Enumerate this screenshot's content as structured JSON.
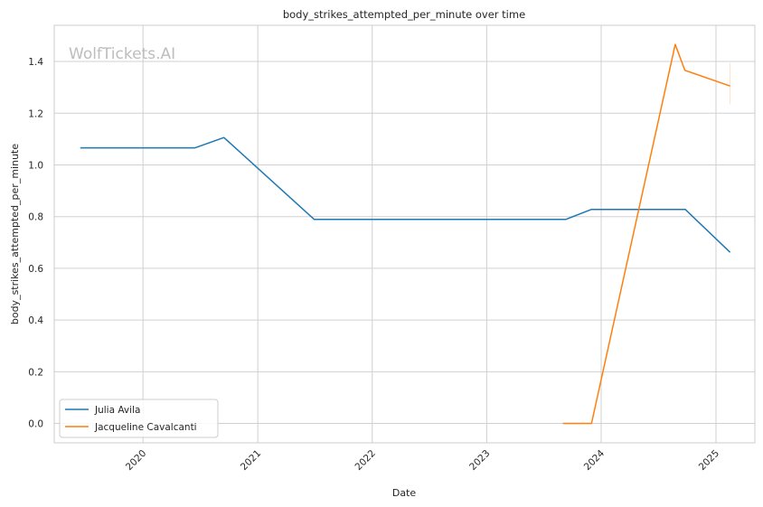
{
  "chart_data": {
    "type": "line",
    "title": "body_strikes_attempted_per_minute over time",
    "xlabel": "Date",
    "ylabel": "body_strikes_attempted_per_minute",
    "watermark": "WolfTickets.AI",
    "x_ticks": [
      "2020",
      "2021",
      "2022",
      "2023",
      "2024",
      "2025"
    ],
    "y_ticks": [
      "0.0",
      "0.2",
      "0.4",
      "0.6",
      "0.8",
      "1.0",
      "1.2",
      "1.4"
    ],
    "xlim": [
      "2019-03-24",
      "2025-05-05"
    ],
    "ylim": [
      -0.075,
      1.54
    ],
    "grid": true,
    "legend_position": "lower-left",
    "series": [
      {
        "name": "Julia Avila",
        "color": "#1f77b4",
        "points": [
          {
            "x": "2019-06-15",
            "y": 1.066
          },
          {
            "x": "2020-06-15",
            "y": 1.066
          },
          {
            "x": "2020-09-15",
            "y": 1.106
          },
          {
            "x": "2021-06-30",
            "y": 0.789
          },
          {
            "x": "2023-09-10",
            "y": 0.789
          },
          {
            "x": "2023-12-01",
            "y": 0.828
          },
          {
            "x": "2024-09-25",
            "y": 0.828
          },
          {
            "x": "2025-02-15",
            "y": 0.662
          }
        ]
      },
      {
        "name": "Jacqueline Cavalcanti",
        "color": "#ff7f0e",
        "points": [
          {
            "x": "2023-09-01",
            "y": 0.0
          },
          {
            "x": "2023-12-01",
            "y": 0.0
          },
          {
            "x": "2024-08-24",
            "y": 1.466
          },
          {
            "x": "2024-09-24",
            "y": 1.366
          },
          {
            "x": "2025-02-15",
            "y": 1.305
          }
        ]
      }
    ]
  }
}
